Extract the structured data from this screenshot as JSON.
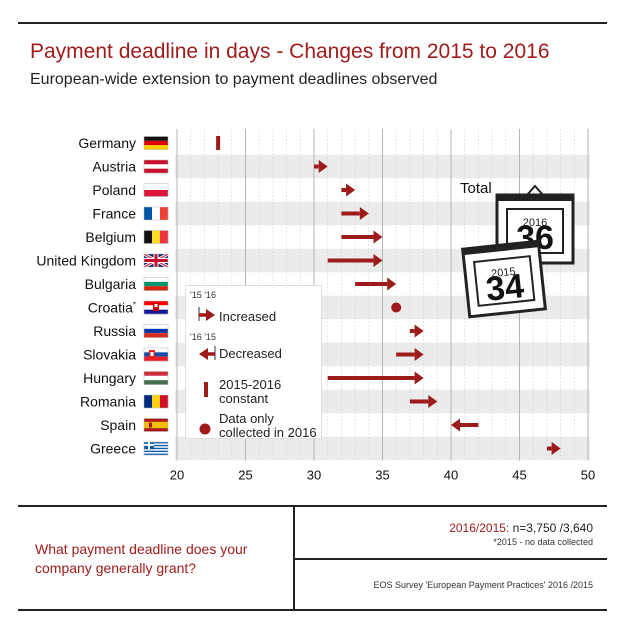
{
  "header": {
    "title": "Payment deadline in days - Changes from 2015 to 2016",
    "subtitle": "European-wide extension to payment deadlines observed"
  },
  "chart_data": {
    "type": "arrow-range",
    "xlim": [
      20,
      50
    ],
    "xticks": [
      20,
      25,
      30,
      35,
      40,
      45,
      50
    ],
    "countries": [
      {
        "name": "Germany",
        "flag": "germany-flag",
        "v2015": 23,
        "v2016": 23,
        "kind": "constant"
      },
      {
        "name": "Austria",
        "flag": "austria-flag",
        "v2015": 30,
        "v2016": 31,
        "kind": "increased"
      },
      {
        "name": "Poland",
        "flag": "poland-flag",
        "v2015": 32,
        "v2016": 33,
        "kind": "increased"
      },
      {
        "name": "France",
        "flag": "france-flag",
        "v2015": 32,
        "v2016": 34,
        "kind": "increased"
      },
      {
        "name": "Belgium",
        "flag": "belgium-flag",
        "v2015": 32,
        "v2016": 35,
        "kind": "increased"
      },
      {
        "name": "United Kingdom",
        "flag": "uk-flag",
        "v2015": 31,
        "v2016": 35,
        "kind": "increased"
      },
      {
        "name": "Bulgaria",
        "flag": "bulgaria-flag",
        "v2015": 33,
        "v2016": 36,
        "kind": "increased"
      },
      {
        "name": "Croatia",
        "flag": "croatia-flag",
        "v2015": null,
        "v2016": 36,
        "kind": "only2016",
        "sup": "*"
      },
      {
        "name": "Russia",
        "flag": "russia-flag",
        "v2015": 37,
        "v2016": 38,
        "kind": "increased"
      },
      {
        "name": "Slovakia",
        "flag": "slovakia-flag",
        "v2015": 36,
        "v2016": 38,
        "kind": "increased"
      },
      {
        "name": "Hungary",
        "flag": "hungary-flag",
        "v2015": 31,
        "v2016": 38,
        "kind": "increased"
      },
      {
        "name": "Romania",
        "flag": "romania-flag",
        "v2015": 37,
        "v2016": 39,
        "kind": "increased"
      },
      {
        "name": "Spain",
        "flag": "spain-flag",
        "v2015": 42,
        "v2016": 40,
        "kind": "decreased"
      },
      {
        "name": "Greece",
        "flag": "greece-flag",
        "v2015": 47,
        "v2016": 48,
        "kind": "increased"
      }
    ]
  },
  "legend": {
    "increased_years": "'15 '16",
    "increased": "Increased",
    "decreased_years": "'16 '15",
    "decreased": "Decreased",
    "constant": "2015-2016 constant",
    "only2016": "Data only collected in 2016"
  },
  "total": {
    "label": "Total",
    "year2016": "2016",
    "value2016": "36",
    "year2015": "2015",
    "value2015": "34"
  },
  "footer": {
    "question": "What payment deadline does your company generally grant?",
    "n_label": "2016/2015:",
    "n_value": " n=3,750 /3,640",
    "note": "*2015 - no data collected",
    "source": "EOS Survey 'European Payment Practices' 2016 /2015"
  },
  "colors": {
    "accent": "#9e1b1b",
    "stripe": "#ebebeb",
    "ink": "#222222"
  }
}
